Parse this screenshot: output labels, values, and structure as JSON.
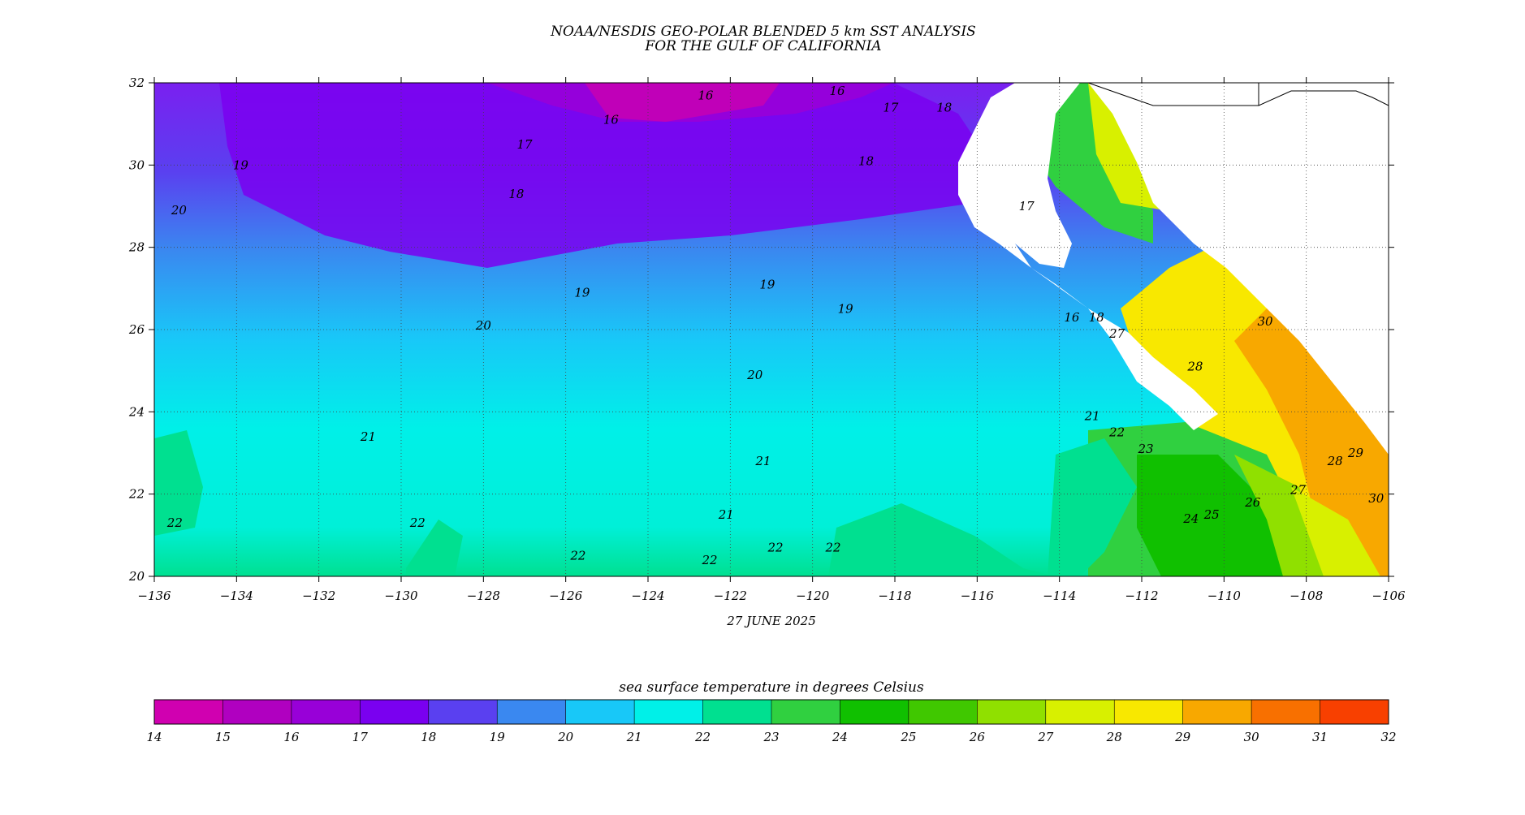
{
  "title": {
    "line1": "NOAA/NESDIS GEO-POLAR BLENDED 5 km SST ANALYSIS",
    "line2": "FOR THE GULF OF CALIFORNIA"
  },
  "date": "27 JUNE 2025",
  "map": {
    "lon_range": [
      -136,
      -106
    ],
    "lat_range": [
      20,
      32
    ],
    "x_ticks": [
      -136,
      -134,
      -132,
      -130,
      -128,
      -126,
      -124,
      -122,
      -120,
      -118,
      -116,
      -114,
      -112,
      -110,
      -108,
      -106
    ],
    "y_ticks": [
      20,
      22,
      24,
      26,
      28,
      30,
      32
    ],
    "grid": "dotted",
    "land_color": "#ffffff",
    "contour_labels": [
      {
        "text": "16",
        "lon": -122.6,
        "lat": 31.6
      },
      {
        "text": "16",
        "lon": -119.4,
        "lat": 31.7
      },
      {
        "text": "16",
        "lon": -124.9,
        "lat": 31.0
      },
      {
        "text": "17",
        "lon": -118.1,
        "lat": 31.3
      },
      {
        "text": "18",
        "lon": -116.8,
        "lat": 31.3
      },
      {
        "text": "17",
        "lon": -127.0,
        "lat": 30.4
      },
      {
        "text": "18",
        "lon": -127.2,
        "lat": 29.2
      },
      {
        "text": "18",
        "lon": -118.7,
        "lat": 30.0
      },
      {
        "text": "19",
        "lon": -133.9,
        "lat": 29.9
      },
      {
        "text": "20",
        "lon": -135.4,
        "lat": 28.8
      },
      {
        "text": "17",
        "lon": -114.8,
        "lat": 28.9
      },
      {
        "text": "19",
        "lon": -125.6,
        "lat": 26.8
      },
      {
        "text": "19",
        "lon": -121.1,
        "lat": 27.0
      },
      {
        "text": "19",
        "lon": -119.2,
        "lat": 26.4
      },
      {
        "text": "20",
        "lon": -128.0,
        "lat": 26.0
      },
      {
        "text": "20",
        "lon": -121.4,
        "lat": 24.8
      },
      {
        "text": "16",
        "lon": -113.7,
        "lat": 26.2
      },
      {
        "text": "18",
        "lon": -113.1,
        "lat": 26.2
      },
      {
        "text": "21",
        "lon": -130.8,
        "lat": 23.3
      },
      {
        "text": "21",
        "lon": -121.2,
        "lat": 22.7
      },
      {
        "text": "21",
        "lon": -122.1,
        "lat": 21.4
      },
      {
        "text": "21",
        "lon": -113.2,
        "lat": 23.8
      },
      {
        "text": "22",
        "lon": -112.6,
        "lat": 23.4
      },
      {
        "text": "23",
        "lon": -111.9,
        "lat": 23.0
      },
      {
        "text": "22",
        "lon": -135.5,
        "lat": 21.2
      },
      {
        "text": "22",
        "lon": -129.6,
        "lat": 21.2
      },
      {
        "text": "22",
        "lon": -125.7,
        "lat": 20.4
      },
      {
        "text": "22",
        "lon": -122.5,
        "lat": 20.3
      },
      {
        "text": "22",
        "lon": -120.9,
        "lat": 20.6
      },
      {
        "text": "22",
        "lon": -119.5,
        "lat": 20.6
      },
      {
        "text": "24",
        "lon": -110.8,
        "lat": 21.3
      },
      {
        "text": "25",
        "lon": -110.3,
        "lat": 21.4
      },
      {
        "text": "26",
        "lon": -109.3,
        "lat": 21.7
      },
      {
        "text": "27",
        "lon": -108.2,
        "lat": 22.0
      },
      {
        "text": "28",
        "lon": -107.3,
        "lat": 22.7
      },
      {
        "text": "29",
        "lon": -106.8,
        "lat": 22.9
      },
      {
        "text": "30",
        "lon": -106.3,
        "lat": 21.8
      },
      {
        "text": "30",
        "lon": -109.0,
        "lat": 26.1
      },
      {
        "text": "28",
        "lon": -110.7,
        "lat": 25.0
      },
      {
        "text": "27",
        "lon": -112.6,
        "lat": 25.8
      }
    ]
  },
  "colorbar": {
    "label": "sea surface temperature in degrees Celsius",
    "ticks": [
      "14",
      "15",
      "16",
      "17",
      "18",
      "19",
      "20",
      "21",
      "22",
      "23",
      "24",
      "25",
      "26",
      "27",
      "28",
      "29",
      "30",
      "31",
      "32"
    ],
    "colors": [
      "#d000b0",
      "#b000c0",
      "#9800d8",
      "#7a00f0",
      "#5a40f0",
      "#3a88f0",
      "#18c8f8",
      "#00f0e8",
      "#00e090",
      "#30d040",
      "#10c000",
      "#40c800",
      "#90e000",
      "#d8f000",
      "#f8e800",
      "#f8a800",
      "#f87000",
      "#f84000"
    ]
  }
}
